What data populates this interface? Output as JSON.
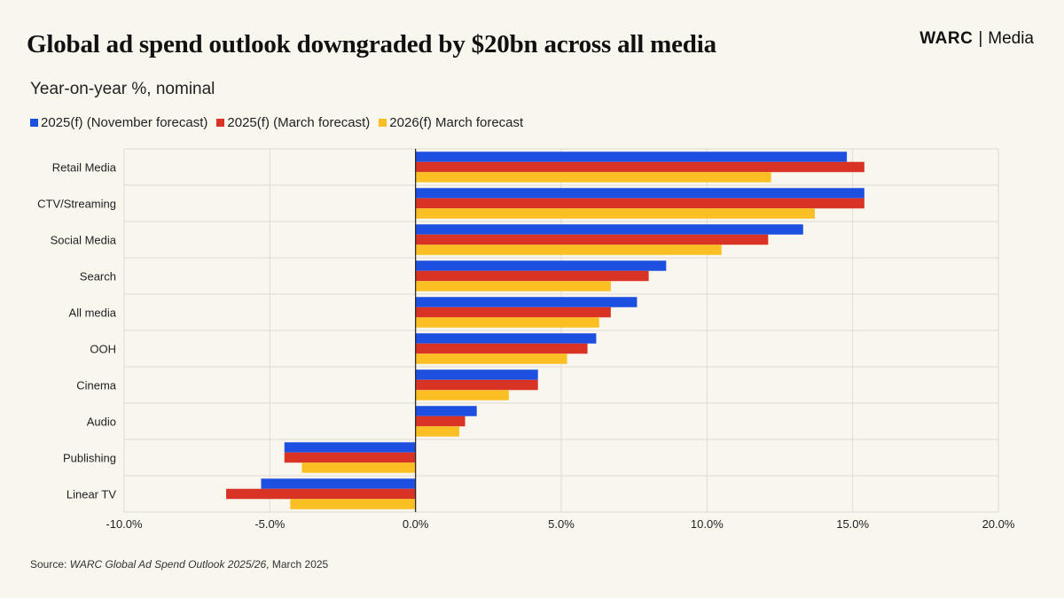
{
  "header": {
    "title": "Global ad spend outlook downgraded by $20bn across all media",
    "subtitle": "Year-on-year %, nominal",
    "brand_name": "WARC",
    "brand_sep": "|",
    "brand_section": "Media"
  },
  "footer": {
    "source_prefix": "Source: ",
    "source_italic": "WARC Global Ad Spend Outlook 2025/26",
    "source_suffix": ", March 2025"
  },
  "chart_data": {
    "type": "bar",
    "orientation": "horizontal",
    "categories": [
      "Retail Media",
      "CTV/Streaming",
      "Social Media",
      "Search",
      "All media",
      "OOH",
      "Cinema",
      "Audio",
      "Publishing",
      "Linear TV"
    ],
    "series": [
      {
        "name": "2025(f) (November forecast)",
        "color": "#1d4fe0",
        "values": [
          14.8,
          15.4,
          13.3,
          8.6,
          7.6,
          6.2,
          4.2,
          2.1,
          -4.5,
          -5.3
        ]
      },
      {
        "name": "2025(f) (March forecast)",
        "color": "#d93325",
        "values": [
          15.4,
          15.4,
          12.1,
          8.0,
          6.7,
          5.9,
          4.2,
          1.7,
          -4.5,
          -6.5
        ]
      },
      {
        "name": "2026(f) March forecast",
        "color": "#fbbf24",
        "values": [
          12.2,
          13.7,
          10.5,
          6.7,
          6.3,
          5.2,
          3.2,
          1.5,
          -3.9,
          -4.3
        ]
      }
    ],
    "xlim": [
      -10,
      20
    ],
    "xticks": [
      -10,
      -5,
      0,
      5,
      10,
      15,
      20
    ],
    "xtick_labels": [
      "-10.0%",
      "-5.0%",
      "0.0%",
      "5.0%",
      "10.0%",
      "15.0%",
      "20.0%"
    ],
    "grid": true,
    "legend_position": "top-left"
  }
}
